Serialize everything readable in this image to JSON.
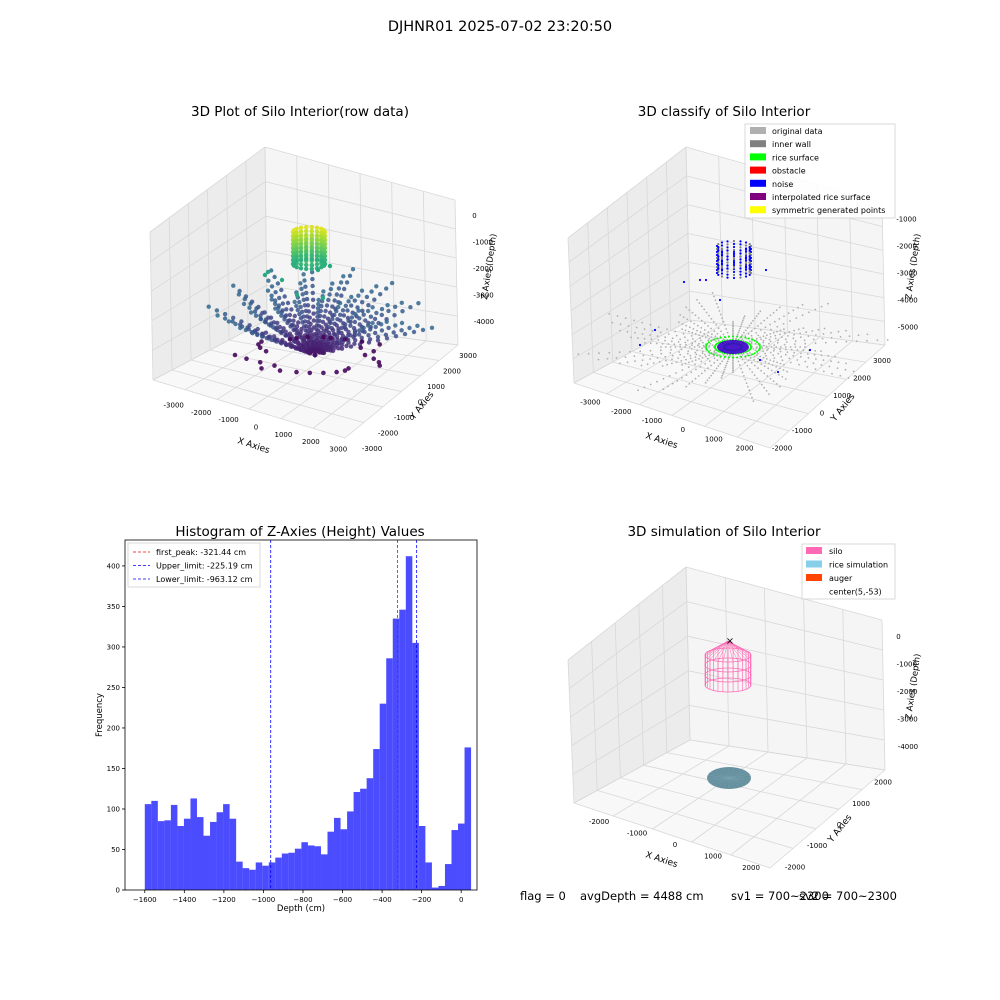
{
  "figure": {
    "suptitle": "DJHNR01 2025-07-02 23:20:50",
    "status": {
      "flag": "flag = 0",
      "avg": "avgDepth = 4488 cm",
      "sv1": "sv1 = 700~2300",
      "sv2": "sv2 = 700~2300"
    }
  },
  "chart_data": [
    {
      "type": "scatter",
      "projection": "3d",
      "title": "3D Plot of Silo Interior(row data)",
      "xlabel": "X Axies",
      "ylabel": "Y Axies",
      "zlabel": "Z Axies (Depth)",
      "xticks": [
        "-3000",
        "-2000",
        "-1000",
        "0",
        "1000",
        "2000",
        "3000"
      ],
      "yticks": [
        "-3000",
        "-2000",
        "-1000",
        "0",
        "1000",
        "2000",
        "3000"
      ],
      "zticks": [
        "0",
        "-1000",
        "-2000",
        "-3000",
        "-4000"
      ],
      "colormap": "viridis",
      "grid": true
    },
    {
      "type": "scatter",
      "projection": "3d",
      "title": "3D classify of Silo Interior",
      "xlabel": "X Axies",
      "ylabel": "Y Axies",
      "zlabel": "Z Axies (Depth)",
      "xticks": [
        "-3000",
        "-2000",
        "-1000",
        "0",
        "1000",
        "2000"
      ],
      "yticks": [
        "-2000",
        "-1000",
        "0",
        "1000",
        "2000",
        "3000"
      ],
      "zticks": [
        "-1000",
        "-2000",
        "-3000",
        "-4000",
        "-5000"
      ],
      "legend_position": "top-right",
      "legend": [
        {
          "label": "original data",
          "color": "#b0b0b0"
        },
        {
          "label": "inner wall",
          "color": "#808080"
        },
        {
          "label": "rice surface",
          "color": "#00ff00"
        },
        {
          "label": "obstacle",
          "color": "#ff0000"
        },
        {
          "label": "noise",
          "color": "#0000ff"
        },
        {
          "label": "interpolated rice surface",
          "color": "#800080"
        },
        {
          "label": "symmetric generated points",
          "color": "#ffff00"
        }
      ],
      "grid": true
    },
    {
      "type": "bar",
      "title": "Histogram of Z-Axies (Height) Values",
      "xlabel": "Depth (cm)",
      "ylabel": "Frequency",
      "xlim": [
        -1700,
        80
      ],
      "ylim": [
        0,
        432
      ],
      "xticks": [
        -1600,
        -1400,
        -1200,
        -1000,
        -800,
        -600,
        -400,
        -200,
        0
      ],
      "yticks": [
        0,
        50,
        100,
        150,
        200,
        250,
        300,
        350,
        400
      ],
      "bin_start": -1600,
      "bin_width": 33,
      "values": [
        106,
        110,
        85,
        86,
        105,
        79,
        88,
        113,
        90,
        67,
        84,
        96,
        106,
        88,
        35,
        27,
        25,
        34,
        30,
        34,
        40,
        45,
        46,
        51,
        59,
        55,
        54,
        44,
        72,
        89,
        75,
        97,
        121,
        125,
        138,
        174,
        230,
        286,
        335,
        346,
        412,
        305,
        79,
        34,
        3,
        5,
        32,
        74,
        82,
        176
      ],
      "bar_color": "#0000ff",
      "lines": [
        {
          "label": "first_peak: -321.44 cm",
          "x": -321.44,
          "color": "#ff0000"
        },
        {
          "label": "Upper_limit: -225.19 cm",
          "x": -225.19,
          "color": "#0000ff"
        },
        {
          "label": "Lower_limit: -963.12 cm",
          "x": -963.12,
          "color": "#0000ff"
        }
      ],
      "legend_position": "top-left"
    },
    {
      "type": "scatter",
      "projection": "3d",
      "title": "3D simulation of Silo Interior",
      "xlabel": "X Axies",
      "ylabel": "Y Axies",
      "zlabel": "Z Axies (Depth)",
      "xticks": [
        "-2000",
        "-1000",
        "0",
        "1000",
        "2000"
      ],
      "yticks": [
        "-2000",
        "-1000",
        "0",
        "1000",
        "2000"
      ],
      "zticks": [
        "0",
        "-1000",
        "-2000",
        "-3000",
        "-4000"
      ],
      "legend_position": "top-right",
      "legend": [
        {
          "label": "silo",
          "color": "#ff69b4"
        },
        {
          "label": "rice simulation",
          "color": "#87ceeb"
        },
        {
          "label": "auger",
          "color": "#ff4500"
        },
        {
          "label": "center(5,-53)",
          "color": "#000000",
          "marker": "x"
        }
      ],
      "grid": true
    }
  ]
}
